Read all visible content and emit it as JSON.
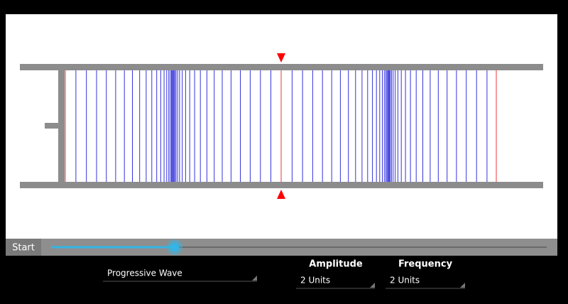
{
  "start_button": "Start",
  "wave_type": "Progressive Wave",
  "amplitude": {
    "label": "Amplitude",
    "value": "2 Units"
  },
  "frequency": {
    "label": "Frequency",
    "value": "2 Units"
  }
}
